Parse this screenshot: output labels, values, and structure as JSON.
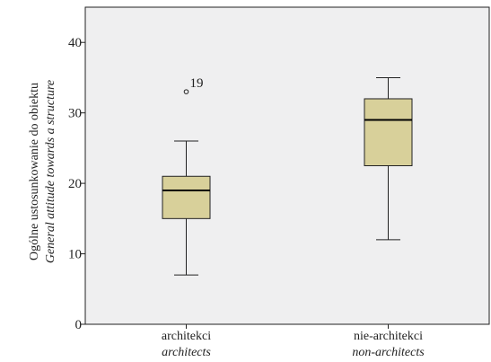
{
  "chart_data": {
    "type": "boxplot",
    "ylabel": "Ogólne ustosunkowanie do obiektu",
    "ylabel_en": "General attitude towards a structure",
    "ylim": [
      0,
      45
    ],
    "yticks": [
      0,
      10,
      20,
      30,
      40
    ],
    "grid": false,
    "colors": {
      "plot_background": "#efeff0",
      "box_fill": "#d8d09a",
      "stroke": "#222222"
    },
    "categories": [
      {
        "label": "architekci",
        "label_en": "architects",
        "whisker_low": 7,
        "q1": 15,
        "median": 19,
        "q3": 21,
        "whisker_high": 26,
        "outliers": [
          {
            "value": 33,
            "label": "19"
          }
        ]
      },
      {
        "label": "nie-architekci",
        "label_en": "non-architects",
        "whisker_low": 12,
        "q1": 22.5,
        "median": 29,
        "q3": 32,
        "whisker_high": 35,
        "outliers": []
      }
    ]
  }
}
